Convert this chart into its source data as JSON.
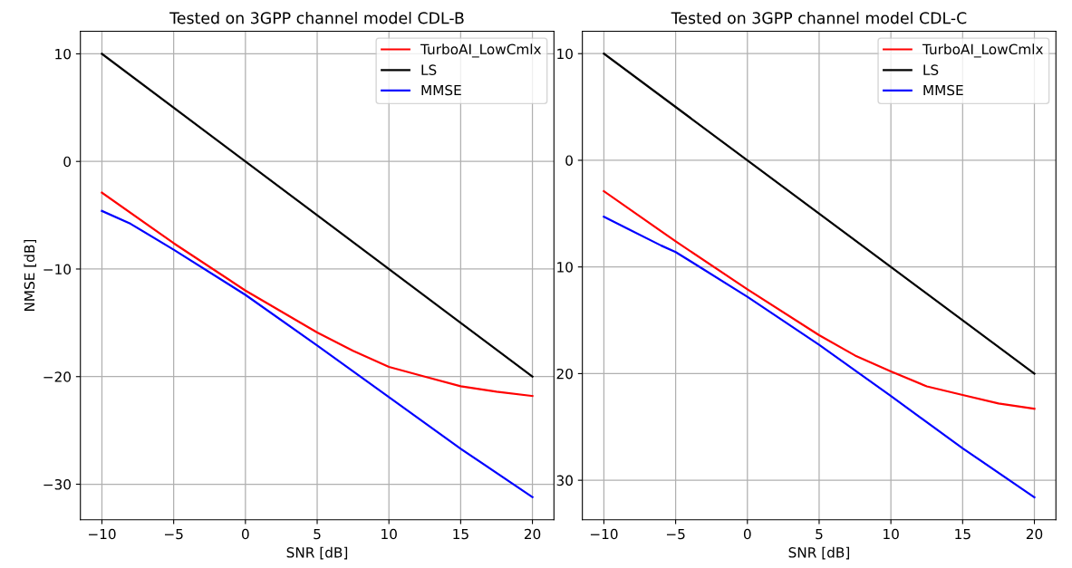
{
  "chart_data": [
    {
      "type": "line",
      "title": "Tested on 3GPP channel model CDL-B",
      "xlabel": "SNR [dB]",
      "ylabel": "NMSE [dB]",
      "xlim": [
        -11.5,
        21.5
      ],
      "xticks": [
        -10,
        -5,
        0,
        5,
        10,
        15,
        20
      ],
      "ylim": [
        -33.3,
        12.1
      ],
      "yticks": [
        -30,
        -20,
        -10,
        0,
        10
      ],
      "grid": true,
      "legend": "top right",
      "series": [
        {
          "name": "TurboAI_LowCmlx",
          "color": "#ff0000",
          "x": [
            -10,
            -5,
            0,
            5,
            7.5,
            10,
            12.5,
            15,
            17.5,
            20
          ],
          "values": [
            -2.9,
            -7.6,
            -12.0,
            -15.9,
            -17.6,
            -19.1,
            -20.0,
            -20.9,
            -21.4,
            -21.8
          ]
        },
        {
          "name": "LS",
          "color": "#000000",
          "x": [
            -10,
            20
          ],
          "values": [
            10,
            -20
          ]
        },
        {
          "name": "MMSE",
          "color": "#0000ff",
          "x": [
            -10,
            -8,
            -5,
            0,
            5,
            10,
            15,
            20
          ],
          "values": [
            -4.6,
            -5.8,
            -8.2,
            -12.4,
            -17.1,
            -21.9,
            -26.7,
            -31.2
          ]
        }
      ]
    },
    {
      "type": "line",
      "title": "Tested on 3GPP channel model CDL-C",
      "xlabel": "SNR [dB]",
      "xlim": [
        -11.5,
        21.5
      ],
      "xticks": [
        -10,
        -5,
        0,
        5,
        10,
        15,
        20
      ],
      "ylim": [
        -33.7,
        12.1
      ],
      "yticks": [
        {
          "value": -30,
          "label": "30"
        },
        {
          "value": -20,
          "label": "20"
        },
        {
          "value": -10,
          "label": "10"
        },
        0,
        10
      ],
      "grid": true,
      "legend": "top right",
      "series": [
        {
          "name": "TurboAI_LowCmlx",
          "color": "#ff0000",
          "x": [
            -10,
            -5,
            0,
            5,
            7.5,
            10,
            12.5,
            15,
            17.5,
            20
          ],
          "values": [
            -2.9,
            -7.6,
            -12.1,
            -16.4,
            -18.3,
            -19.8,
            -21.2,
            -22.0,
            -22.8,
            -23.3
          ]
        },
        {
          "name": "LS",
          "color": "#000000",
          "x": [
            -10,
            20
          ],
          "values": [
            10,
            -20
          ]
        },
        {
          "name": "MMSE",
          "color": "#0000ff",
          "x": [
            -10,
            -6,
            -5,
            0,
            5,
            10,
            15,
            20
          ],
          "values": [
            -5.3,
            -8.0,
            -8.6,
            -12.8,
            -17.3,
            -22.1,
            -27.0,
            -31.6
          ]
        }
      ]
    }
  ]
}
